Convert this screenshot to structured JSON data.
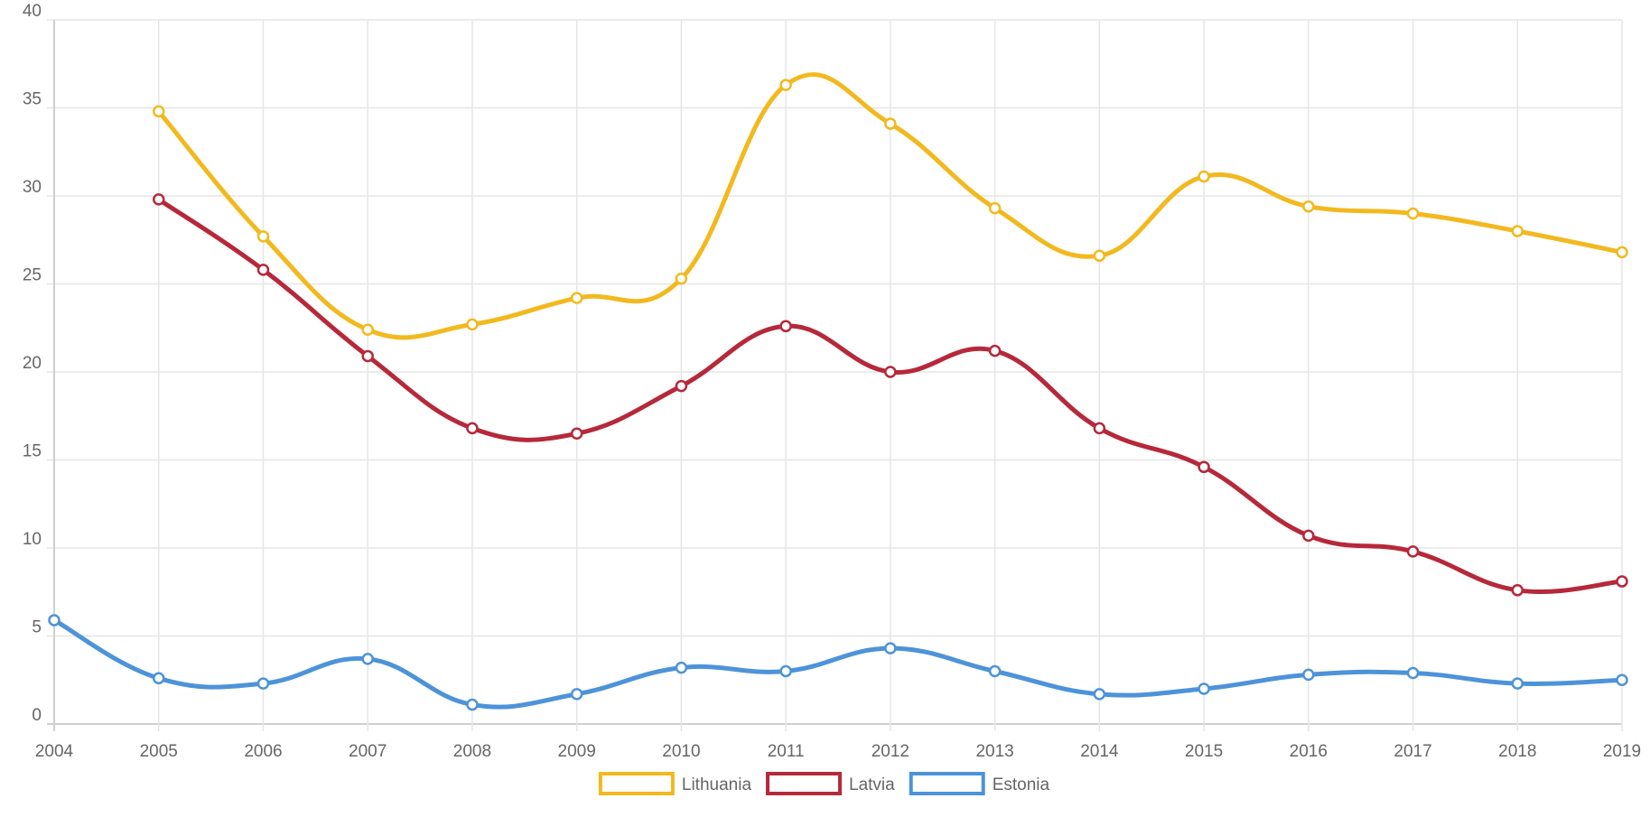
{
  "chart_data": {
    "type": "line",
    "title": "",
    "xlabel": "",
    "ylabel": "",
    "categories": [
      "2004",
      "2005",
      "2006",
      "2007",
      "2008",
      "2009",
      "2010",
      "2011",
      "2012",
      "2013",
      "2014",
      "2015",
      "2016",
      "2017",
      "2018",
      "2019"
    ],
    "ylim": [
      0,
      40
    ],
    "yticks": [
      "0",
      "5",
      "10",
      "15",
      "20",
      "25",
      "30",
      "35",
      "40"
    ],
    "grid": true,
    "legend_position": "bottom",
    "series": [
      {
        "name": "Lithuania",
        "color": "#f2b91f",
        "values": [
          null,
          34.8,
          27.7,
          22.4,
          22.7,
          24.2,
          25.3,
          36.3,
          34.1,
          29.3,
          26.6,
          31.1,
          29.4,
          29.0,
          28.0,
          26.8
        ]
      },
      {
        "name": "Latvia",
        "color": "#b6283a",
        "values": [
          null,
          29.8,
          25.8,
          20.9,
          16.8,
          16.5,
          19.2,
          22.6,
          20.0,
          21.2,
          16.8,
          14.6,
          10.7,
          9.8,
          7.6,
          8.1
        ]
      },
      {
        "name": "Estonia",
        "color": "#4d93d9",
        "values": [
          5.9,
          2.6,
          2.3,
          3.7,
          1.1,
          1.7,
          3.2,
          3.0,
          4.3,
          3.0,
          1.7,
          2.0,
          2.8,
          2.9,
          2.3,
          2.5
        ]
      }
    ]
  }
}
